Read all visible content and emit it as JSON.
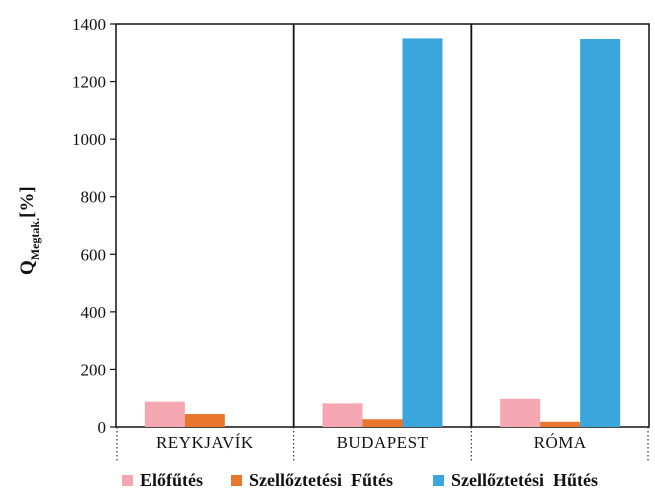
{
  "chart_data": {
    "type": "bar",
    "ylabel_main": "Q",
    "ylabel_sub": "Megtak.",
    "ylabel_unit": "[%]",
    "ylim": [
      0,
      1400
    ],
    "yticks": [
      0,
      200,
      400,
      600,
      800,
      1000,
      1200,
      1400
    ],
    "categories": [
      "REYKJAVÍK",
      "BUDAPEST",
      "RÓMA"
    ],
    "series": [
      {
        "name": "Előfűtés",
        "color": "#f4a7b0",
        "values": [
          88,
          82,
          98
        ]
      },
      {
        "name": "Szellőztetési  Fűtés",
        "color": "#e8772d",
        "values": [
          45,
          27,
          18
        ]
      },
      {
        "name": "Szellőztetési  Hűtés",
        "color": "#3aa6dc",
        "values": [
          0,
          1350,
          1348
        ]
      }
    ],
    "legend_position": "bottom",
    "grid": false
  }
}
